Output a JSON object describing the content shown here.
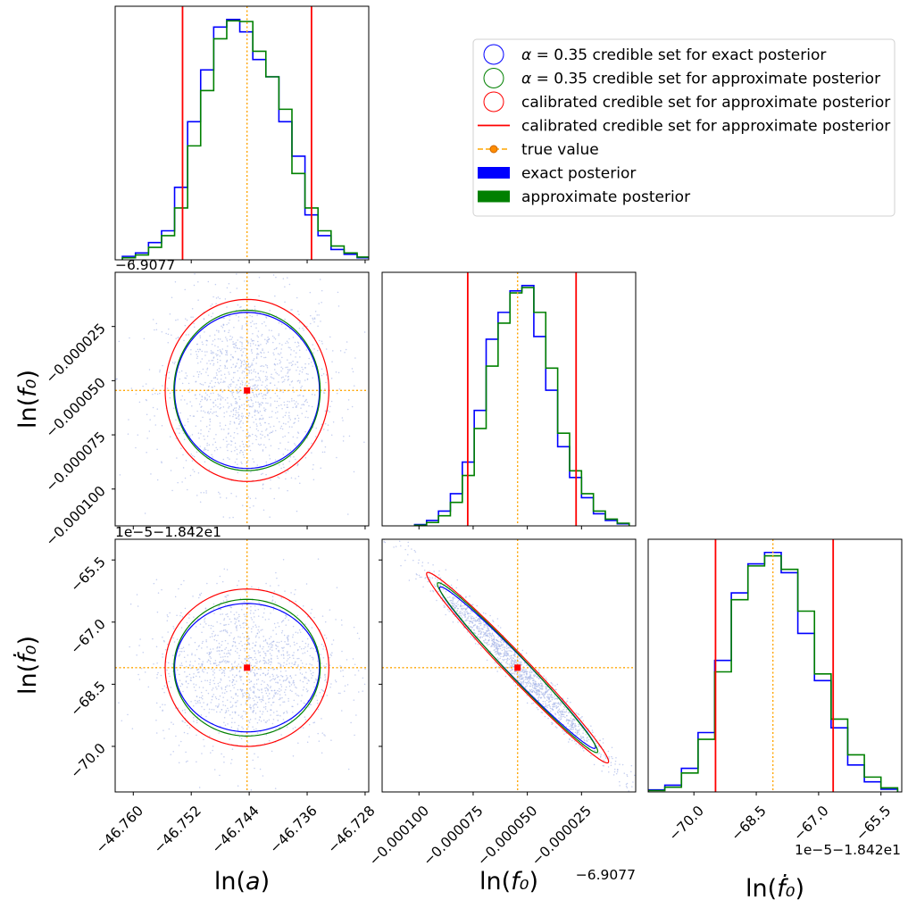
{
  "chart_data": {
    "type": "corner",
    "parameters": [
      {
        "key": "a",
        "label": "ln(",
        "label_var": "a",
        "label_end": ")",
        "range": [
          -46.7625,
          -46.7275
        ],
        "ticks": [
          -46.76,
          -46.752,
          -46.744,
          -46.736,
          -46.728
        ],
        "tick_labels": [
          "−46.760",
          "−46.752",
          "−46.744",
          "−46.736",
          "−46.728"
        ],
        "offset_text": "",
        "true_value": -46.7443,
        "mean": -46.7443,
        "sigma": 0.0045,
        "calibrated_interval": [
          -46.7532,
          -46.7354
        ]
      },
      {
        "key": "f0",
        "label": "ln(",
        "label_var": "f₀",
        "label_end": ")",
        "range": [
          -0.000117,
          0.0
        ],
        "ticks": [
          -0.0001,
          -7.5e-05,
          -5e-05,
          -2.5e-05
        ],
        "tick_labels": [
          "−0.000100",
          "−0.000075",
          "−0.000050",
          "−0.000025"
        ],
        "offset_text": "−6.9077",
        "true_value": -5.45e-05,
        "mean": -5.45e-05,
        "sigma": 1.65e-05,
        "calibrated_interval": [
          -7.75e-05,
          -2.75e-05
        ]
      },
      {
        "key": "f0dot",
        "label": "ln(",
        "label_var": "ḟ₀",
        "label_end": ")",
        "range": [
          -71.1,
          -65.0
        ],
        "ticks": [
          -70.0,
          -68.5,
          -67.0,
          -65.5
        ],
        "tick_labels": [
          "−70.0",
          "−68.5",
          "−67.0",
          "−65.5"
        ],
        "offset_text": "1e−5−1.842e1",
        "true_value": -68.1,
        "mean": -68.1,
        "sigma": 0.9,
        "calibrated_interval": [
          -69.48,
          -66.65
        ]
      }
    ],
    "histograms": [
      {
        "param": "a",
        "bin_edges": [
          -46.7615,
          -46.7597,
          -46.7579,
          -46.7561,
          -46.7543,
          -46.7525,
          -46.7507,
          -46.7489,
          -46.7471,
          -46.7453,
          -46.7435,
          -46.7417,
          -46.7399,
          -46.7381,
          -46.7363,
          -46.7345,
          -46.7327,
          -46.7309,
          -46.7291,
          -46.7273
        ],
        "exact": [
          5,
          10,
          25,
          42,
          105,
          200,
          275,
          337,
          348,
          330,
          290,
          265,
          200,
          150,
          65,
          35,
          15,
          8,
          3
        ],
        "approximate": [
          3,
          7,
          18,
          35,
          75,
          165,
          245,
          320,
          346,
          345,
          302,
          265,
          218,
          125,
          75,
          42,
          20,
          10,
          4
        ]
      },
      {
        "param": "f0",
        "bin_edges": [
          -0.000102,
          -9.65e-05,
          -9.1e-05,
          -8.55e-05,
          -8e-05,
          -7.45e-05,
          -6.9e-05,
          -6.35e-05,
          -5.8e-05,
          -5.25e-05,
          -4.7e-05,
          -4.15e-05,
          -3.6e-05,
          -3.05e-05,
          -2.5e-05,
          -1.95e-05,
          -1.4e-05,
          -8.5e-06,
          -3e-06
        ],
        "exact": [
          2,
          8,
          22,
          48,
          95,
          172,
          278,
          318,
          350,
          358,
          282,
          202,
          118,
          72,
          42,
          18,
          8,
          3
        ],
        "approximate": [
          1,
          5,
          15,
          35,
          75,
          145,
          238,
          302,
          347,
          355,
          318,
          235,
          138,
          82,
          48,
          22,
          10,
          4
        ]
      },
      {
        "param": "f0dot",
        "bin_edges": [
          -71.1,
          -70.7,
          -70.3,
          -69.9,
          -69.5,
          -69.1,
          -68.7,
          -68.3,
          -67.9,
          -67.5,
          -67.1,
          -66.7,
          -66.3,
          -65.9,
          -65.5,
          -65.1
        ],
        "exact": [
          3,
          10,
          35,
          88,
          195,
          295,
          338,
          355,
          325,
          235,
          165,
          95,
          40,
          15,
          4
        ],
        "approximate": [
          2,
          7,
          28,
          78,
          178,
          285,
          335,
          350,
          330,
          268,
          175,
          108,
          55,
          22,
          6
        ]
      }
    ],
    "scatter_panels": [
      {
        "x": "a",
        "y": "f0",
        "ellipses": {
          "exact": {
            "sx": 0.01,
            "sy": 3.6e-05,
            "corr": 0.0
          },
          "approximate": {
            "sx": 0.0101,
            "sy": 3.7e-05,
            "corr": 0.0
          },
          "calibrated": {
            "sx": 0.0113,
            "sy": 4.2e-05,
            "corr": 0.0
          }
        }
      },
      {
        "x": "a",
        "y": "f0dot",
        "ellipses": {
          "exact": {
            "sx": 0.01,
            "sy": 1.55,
            "corr": 0.0
          },
          "approximate": {
            "sx": 0.0101,
            "sy": 1.65,
            "corr": 0.0
          },
          "calibrated": {
            "sx": 0.0113,
            "sy": 1.9,
            "corr": 0.0
          }
        }
      },
      {
        "x": "f0",
        "y": "f0dot",
        "ellipses": {
          "exact": {
            "sx": 3.6e-05,
            "sy": 1.95,
            "corr": -0.985
          },
          "approximate": {
            "sx": 3.7e-05,
            "sy": 2.05,
            "corr": -0.985
          },
          "calibrated": {
            "sx": 4.2e-05,
            "sy": 2.3,
            "corr": -0.985
          }
        }
      }
    ],
    "legend": {
      "placement": "top-right",
      "entries": [
        {
          "kind": "circle",
          "color": "#0000ff",
          "math": "α",
          "text": " = 0.35 credible set for exact posterior"
        },
        {
          "kind": "circle",
          "color": "#008000",
          "math": "α",
          "text": " = 0.35 credible set for approximate posterior"
        },
        {
          "kind": "circle",
          "color": "#ff0000",
          "math": "",
          "text": "calibrated credible set for approximate posterior"
        },
        {
          "kind": "line",
          "color": "#ff0000",
          "math": "",
          "text": "calibrated credible set for approximate posterior"
        },
        {
          "kind": "marker-line",
          "color": "#ffa500",
          "math": "",
          "text": "true value"
        },
        {
          "kind": "patch",
          "color": "#0000ff",
          "math": "",
          "text": "exact posterior"
        },
        {
          "kind": "patch",
          "color": "#008000",
          "math": "",
          "text": "approximate posterior"
        }
      ]
    },
    "colors": {
      "exact": "#0000ff",
      "approximate": "#008000",
      "calibrated": "#ff0000",
      "true_value": "#ffa500",
      "marker": "#ff0000",
      "points": "#a9b8e8"
    },
    "grid": false
  }
}
